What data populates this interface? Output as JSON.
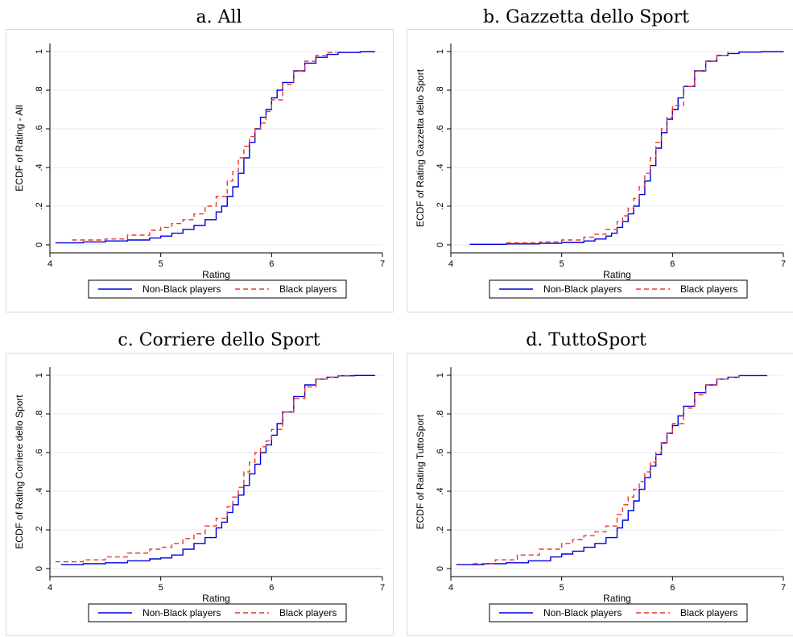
{
  "figure_panels": [
    {
      "id": "a",
      "title": "a. All"
    },
    {
      "id": "b",
      "title": "b. Gazzetta dello Sport"
    },
    {
      "id": "c",
      "title": "c. Corriere dello Sport"
    },
    {
      "id": "d",
      "title": "d. TuttoSport"
    }
  ],
  "colors": {
    "non_black": "#0000dd",
    "black": "#e8382c",
    "grid": "#e6ebf0",
    "frame": "#d9d9d9"
  },
  "chart_data": [
    {
      "type": "line",
      "title": "a. All",
      "xlabel": "Rating",
      "ylabel": "ECDF of Rating - All",
      "xlim": [
        4,
        7
      ],
      "ylim": [
        0,
        1
      ],
      "xticks": [
        "4",
        "5",
        "6",
        "7"
      ],
      "yticks": [
        "0",
        ".2",
        ".4",
        ".6",
        ".8",
        "1"
      ],
      "grid": true,
      "legend_position": "bottom",
      "series": [
        {
          "name": "Non-Black players",
          "line_style": "solid",
          "x": [
            4.05,
            4.3,
            4.5,
            4.7,
            4.9,
            5.0,
            5.1,
            5.2,
            5.3,
            5.4,
            5.5,
            5.55,
            5.6,
            5.65,
            5.7,
            5.75,
            5.8,
            5.85,
            5.9,
            5.95,
            6.0,
            6.05,
            6.1,
            6.2,
            6.3,
            6.4,
            6.5,
            6.6,
            6.8,
            6.93
          ],
          "y": [
            0.01,
            0.015,
            0.02,
            0.025,
            0.035,
            0.045,
            0.06,
            0.08,
            0.1,
            0.13,
            0.17,
            0.2,
            0.25,
            0.3,
            0.37,
            0.45,
            0.53,
            0.6,
            0.66,
            0.7,
            0.76,
            0.8,
            0.84,
            0.9,
            0.94,
            0.97,
            0.985,
            0.995,
            0.999,
            1.0
          ]
        },
        {
          "name": "Black players",
          "line_style": "dashed",
          "x": [
            4.2,
            4.5,
            4.7,
            4.9,
            5.0,
            5.1,
            5.2,
            5.3,
            5.4,
            5.5,
            5.6,
            5.65,
            5.7,
            5.75,
            5.8,
            5.85,
            5.9,
            5.95,
            6.0,
            6.1,
            6.2,
            6.3,
            6.4,
            6.5,
            6.58
          ],
          "y": [
            0.025,
            0.03,
            0.05,
            0.075,
            0.09,
            0.11,
            0.13,
            0.16,
            0.2,
            0.25,
            0.33,
            0.38,
            0.45,
            0.51,
            0.56,
            0.6,
            0.63,
            0.69,
            0.75,
            0.83,
            0.9,
            0.95,
            0.98,
            0.995,
            1.0
          ]
        }
      ]
    },
    {
      "type": "line",
      "title": "b. Gazzetta dello Sport",
      "xlabel": "Rating",
      "ylabel": "ECDF of Rating Gazzetta dello Sport",
      "xlim": [
        4,
        7
      ],
      "ylim": [
        0,
        1
      ],
      "xticks": [
        "4",
        "5",
        "6",
        "7"
      ],
      "yticks": [
        "0",
        ".2",
        ".4",
        ".6",
        ".8",
        "1"
      ],
      "grid": true,
      "legend_position": "bottom",
      "series": [
        {
          "name": "Non-Black players",
          "line_style": "solid",
          "x": [
            4.17,
            4.5,
            4.8,
            5.0,
            5.2,
            5.3,
            5.4,
            5.45,
            5.5,
            5.55,
            5.6,
            5.65,
            5.7,
            5.75,
            5.8,
            5.85,
            5.9,
            5.95,
            6.0,
            6.05,
            6.1,
            6.2,
            6.3,
            6.4,
            6.5,
            6.6,
            6.8,
            7.0
          ],
          "y": [
            0.003,
            0.005,
            0.008,
            0.012,
            0.02,
            0.03,
            0.045,
            0.06,
            0.09,
            0.12,
            0.16,
            0.2,
            0.26,
            0.33,
            0.41,
            0.5,
            0.58,
            0.65,
            0.7,
            0.76,
            0.82,
            0.9,
            0.95,
            0.98,
            0.99,
            0.997,
            0.999,
            1.0
          ]
        },
        {
          "name": "Black players",
          "line_style": "dashed",
          "x": [
            4.5,
            4.8,
            5.0,
            5.2,
            5.3,
            5.4,
            5.5,
            5.55,
            5.6,
            5.65,
            5.7,
            5.75,
            5.8,
            5.85,
            5.9,
            5.95,
            6.0,
            6.1,
            6.2,
            6.3,
            6.4,
            6.5
          ],
          "y": [
            0.01,
            0.015,
            0.025,
            0.04,
            0.055,
            0.08,
            0.12,
            0.15,
            0.19,
            0.24,
            0.3,
            0.37,
            0.45,
            0.53,
            0.6,
            0.66,
            0.72,
            0.82,
            0.9,
            0.95,
            0.98,
            1.0
          ]
        }
      ]
    },
    {
      "type": "line",
      "title": "c. Corriere dello Sport",
      "xlabel": "Rating",
      "ylabel": "ECDF of Rating Corriere dello Sport",
      "xlim": [
        4,
        7
      ],
      "ylim": [
        0,
        1
      ],
      "xticks": [
        "4",
        "5",
        "6",
        "7"
      ],
      "yticks": [
        "0",
        ".2",
        ".4",
        ".6",
        ".8",
        "1"
      ],
      "grid": true,
      "legend_position": "bottom",
      "series": [
        {
          "name": "Non-Black players",
          "line_style": "solid",
          "x": [
            4.1,
            4.3,
            4.5,
            4.7,
            4.9,
            5.0,
            5.1,
            5.2,
            5.3,
            5.4,
            5.5,
            5.55,
            5.6,
            5.65,
            5.7,
            5.75,
            5.8,
            5.85,
            5.9,
            5.95,
            6.0,
            6.05,
            6.1,
            6.2,
            6.3,
            6.4,
            6.5,
            6.6,
            6.75,
            6.93
          ],
          "y": [
            0.02,
            0.025,
            0.03,
            0.04,
            0.05,
            0.055,
            0.07,
            0.1,
            0.13,
            0.16,
            0.21,
            0.24,
            0.29,
            0.33,
            0.38,
            0.43,
            0.49,
            0.54,
            0.6,
            0.64,
            0.69,
            0.75,
            0.81,
            0.89,
            0.95,
            0.98,
            0.99,
            0.997,
            0.999,
            1.0
          ]
        },
        {
          "name": "Black players",
          "line_style": "dashed",
          "x": [
            4.05,
            4.3,
            4.5,
            4.7,
            4.9,
            5.0,
            5.1,
            5.2,
            5.3,
            5.4,
            5.5,
            5.6,
            5.65,
            5.7,
            5.75,
            5.8,
            5.85,
            5.9,
            5.95,
            6.0,
            6.1,
            6.2,
            6.3,
            6.4,
            6.5,
            6.6,
            6.7
          ],
          "y": [
            0.035,
            0.045,
            0.06,
            0.08,
            0.1,
            0.11,
            0.13,
            0.155,
            0.18,
            0.22,
            0.26,
            0.32,
            0.37,
            0.42,
            0.5,
            0.55,
            0.6,
            0.63,
            0.66,
            0.72,
            0.81,
            0.88,
            0.94,
            0.98,
            0.99,
            0.998,
            1.0
          ]
        }
      ]
    },
    {
      "type": "line",
      "title": "d. TuttoSport",
      "xlabel": "Rating",
      "ylabel": "ECDF of Rating TuttoSport",
      "xlim": [
        4,
        7
      ],
      "ylim": [
        0,
        1
      ],
      "xticks": [
        "4",
        "5",
        "6",
        "7"
      ],
      "yticks": [
        "0",
        ".2",
        ".4",
        ".6",
        ".8",
        "1"
      ],
      "grid": true,
      "legend_position": "bottom",
      "series": [
        {
          "name": "Non-Black players",
          "line_style": "solid",
          "x": [
            4.05,
            4.3,
            4.5,
            4.7,
            4.9,
            5.0,
            5.1,
            5.2,
            5.3,
            5.4,
            5.5,
            5.55,
            5.6,
            5.65,
            5.7,
            5.75,
            5.8,
            5.85,
            5.9,
            5.95,
            6.0,
            6.05,
            6.1,
            6.2,
            6.3,
            6.4,
            6.5,
            6.6,
            6.85
          ],
          "y": [
            0.02,
            0.025,
            0.03,
            0.04,
            0.06,
            0.075,
            0.09,
            0.11,
            0.13,
            0.16,
            0.21,
            0.25,
            0.3,
            0.35,
            0.41,
            0.47,
            0.53,
            0.59,
            0.65,
            0.7,
            0.74,
            0.79,
            0.84,
            0.91,
            0.95,
            0.98,
            0.99,
            0.998,
            1.0
          ]
        },
        {
          "name": "Black players",
          "line_style": "dashed",
          "x": [
            4.2,
            4.4,
            4.6,
            4.8,
            5.0,
            5.1,
            5.2,
            5.3,
            5.4,
            5.5,
            5.55,
            5.6,
            5.65,
            5.7,
            5.75,
            5.8,
            5.85,
            5.9,
            5.95,
            6.0,
            6.1,
            6.2,
            6.3,
            6.4,
            6.5,
            6.6
          ],
          "y": [
            0.025,
            0.045,
            0.07,
            0.1,
            0.13,
            0.15,
            0.17,
            0.19,
            0.22,
            0.28,
            0.33,
            0.37,
            0.41,
            0.45,
            0.5,
            0.55,
            0.6,
            0.65,
            0.7,
            0.75,
            0.83,
            0.9,
            0.95,
            0.98,
            0.99,
            1.0
          ]
        }
      ]
    }
  ]
}
